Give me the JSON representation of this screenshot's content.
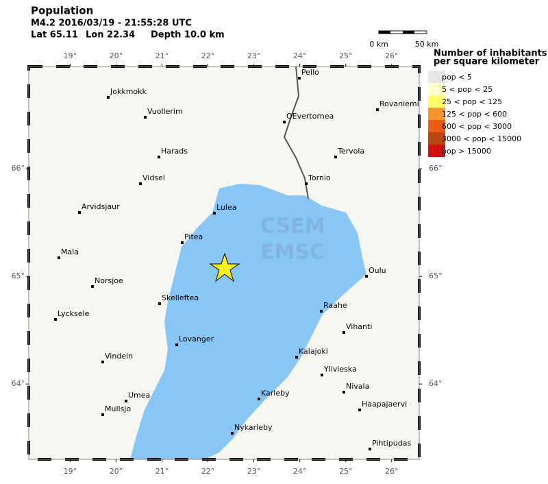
{
  "header": {
    "title": "Population",
    "event": "M4.2  2016/03/19 - 21:55:28 UTC",
    "lat": "Lat 65.11",
    "lon": "Lon 22.34",
    "depth": "Depth  10.0 km"
  },
  "scale": {
    "left": "0 km",
    "right": "50 km"
  },
  "legend": {
    "title": [
      "Number of inhabitants",
      "per square kilometer"
    ],
    "items": [
      {
        "label": "pop < 5",
        "color": "#e6e6e6"
      },
      {
        "label": "5 < pop < 25",
        "color": "#ffffcc"
      },
      {
        "label": "25 < pop < 125",
        "color": "#ffff66"
      },
      {
        "label": "125 < pop < 600",
        "color": "#f7942f"
      },
      {
        "label": "600 < pop < 3000",
        "color": "#f05a14"
      },
      {
        "label": "3000 < pop < 15000",
        "color": "#b8470c"
      },
      {
        "label": "pop > 15000",
        "color": "#d40f0f"
      }
    ]
  },
  "map": {
    "lonlim": [
      18.1,
      26.6
    ],
    "latlim": [
      63.3,
      66.95
    ],
    "lon_ticks": [
      {
        "value": 19,
        "label": "19°"
      },
      {
        "value": 20,
        "label": "20°"
      },
      {
        "value": 21,
        "label": "21°"
      },
      {
        "value": 22,
        "label": "22°"
      },
      {
        "value": 23,
        "label": "23°"
      },
      {
        "value": 24,
        "label": "24°"
      },
      {
        "value": 25,
        "label": "25°"
      },
      {
        "value": 26,
        "label": "26°"
      }
    ],
    "lat_ticks": [
      {
        "value": 64,
        "label": "64°"
      },
      {
        "value": 65,
        "label": "65°"
      },
      {
        "value": 66,
        "label": "66°"
      }
    ]
  },
  "cities": [
    "Pello",
    "Jokkmokk",
    "Vuollerim",
    "OEvertornea",
    "Rovaniemi",
    "Harads",
    "Tervola",
    "Vidsel",
    "Tornio",
    "Lulea",
    "Arvidsjaur",
    "Pitea",
    "Mala",
    "Oulu",
    "Norsjoe",
    "Skelleftea",
    "Raahe",
    "Lycksele",
    "Vihanti",
    "Lovanger",
    "Kalajoki",
    "Vindeln",
    "Ylivieska",
    "Nivala",
    "Umea",
    "Karleby",
    "Haapajaervi",
    "Mullsjo",
    "Nykarleby",
    "Pihtipudas"
  ],
  "watermark": [
    "CSEM",
    "EMSC"
  ]
}
